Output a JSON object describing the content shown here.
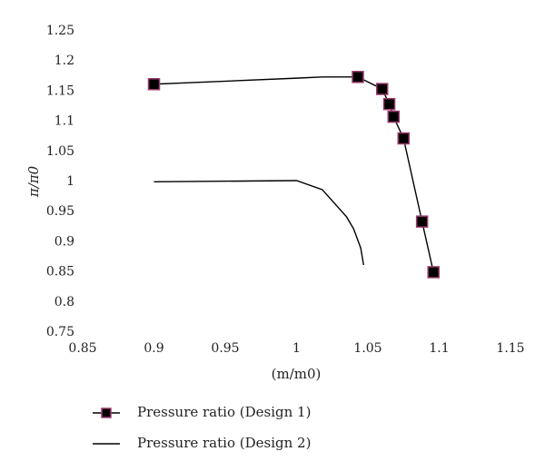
{
  "chart_data": {
    "type": "line",
    "title": "",
    "xlabel": "(m/m0)",
    "ylabel": "π/π0",
    "xlim": [
      0.85,
      1.15
    ],
    "ylim": [
      0.75,
      1.25
    ],
    "xticks": [
      "0.85",
      "0.9",
      "0.95",
      "1",
      "1.05",
      "1.1",
      "1.15"
    ],
    "yticks": [
      "0.75",
      "0.8",
      "0.85",
      "0.9",
      "0.95",
      "1",
      "1.05",
      "1.1",
      "1.15",
      "1.2",
      "1.25"
    ],
    "grid": false,
    "legend_position": "bottom-left",
    "series": [
      {
        "name": "Pressure ratio (Design 1)",
        "marker": "square",
        "color": "#000000",
        "marker_edge": "#9b3a6e",
        "line_x": [
          0.9,
          0.92,
          1.0,
          1.018,
          1.043,
          1.06,
          1.065,
          1.068,
          1.075,
          1.088,
          1.096
        ],
        "line_y": [
          1.16,
          1.162,
          1.17,
          1.172,
          1.172,
          1.152,
          1.127,
          1.106,
          1.07,
          0.932,
          0.848
        ],
        "x": [
          0.9,
          1.043,
          1.06,
          1.065,
          1.068,
          1.075,
          1.088,
          1.096
        ],
        "y": [
          1.16,
          1.172,
          1.152,
          1.127,
          1.106,
          1.07,
          0.932,
          0.848
        ]
      },
      {
        "name": "Pressure ratio (Design 2)",
        "marker": "none",
        "color": "#000000",
        "x": [
          0.9,
          1.0,
          1.018,
          1.035,
          1.04,
          1.045,
          1.047
        ],
        "y": [
          0.998,
          1.0,
          0.985,
          0.94,
          0.92,
          0.888,
          0.86
        ]
      }
    ]
  }
}
